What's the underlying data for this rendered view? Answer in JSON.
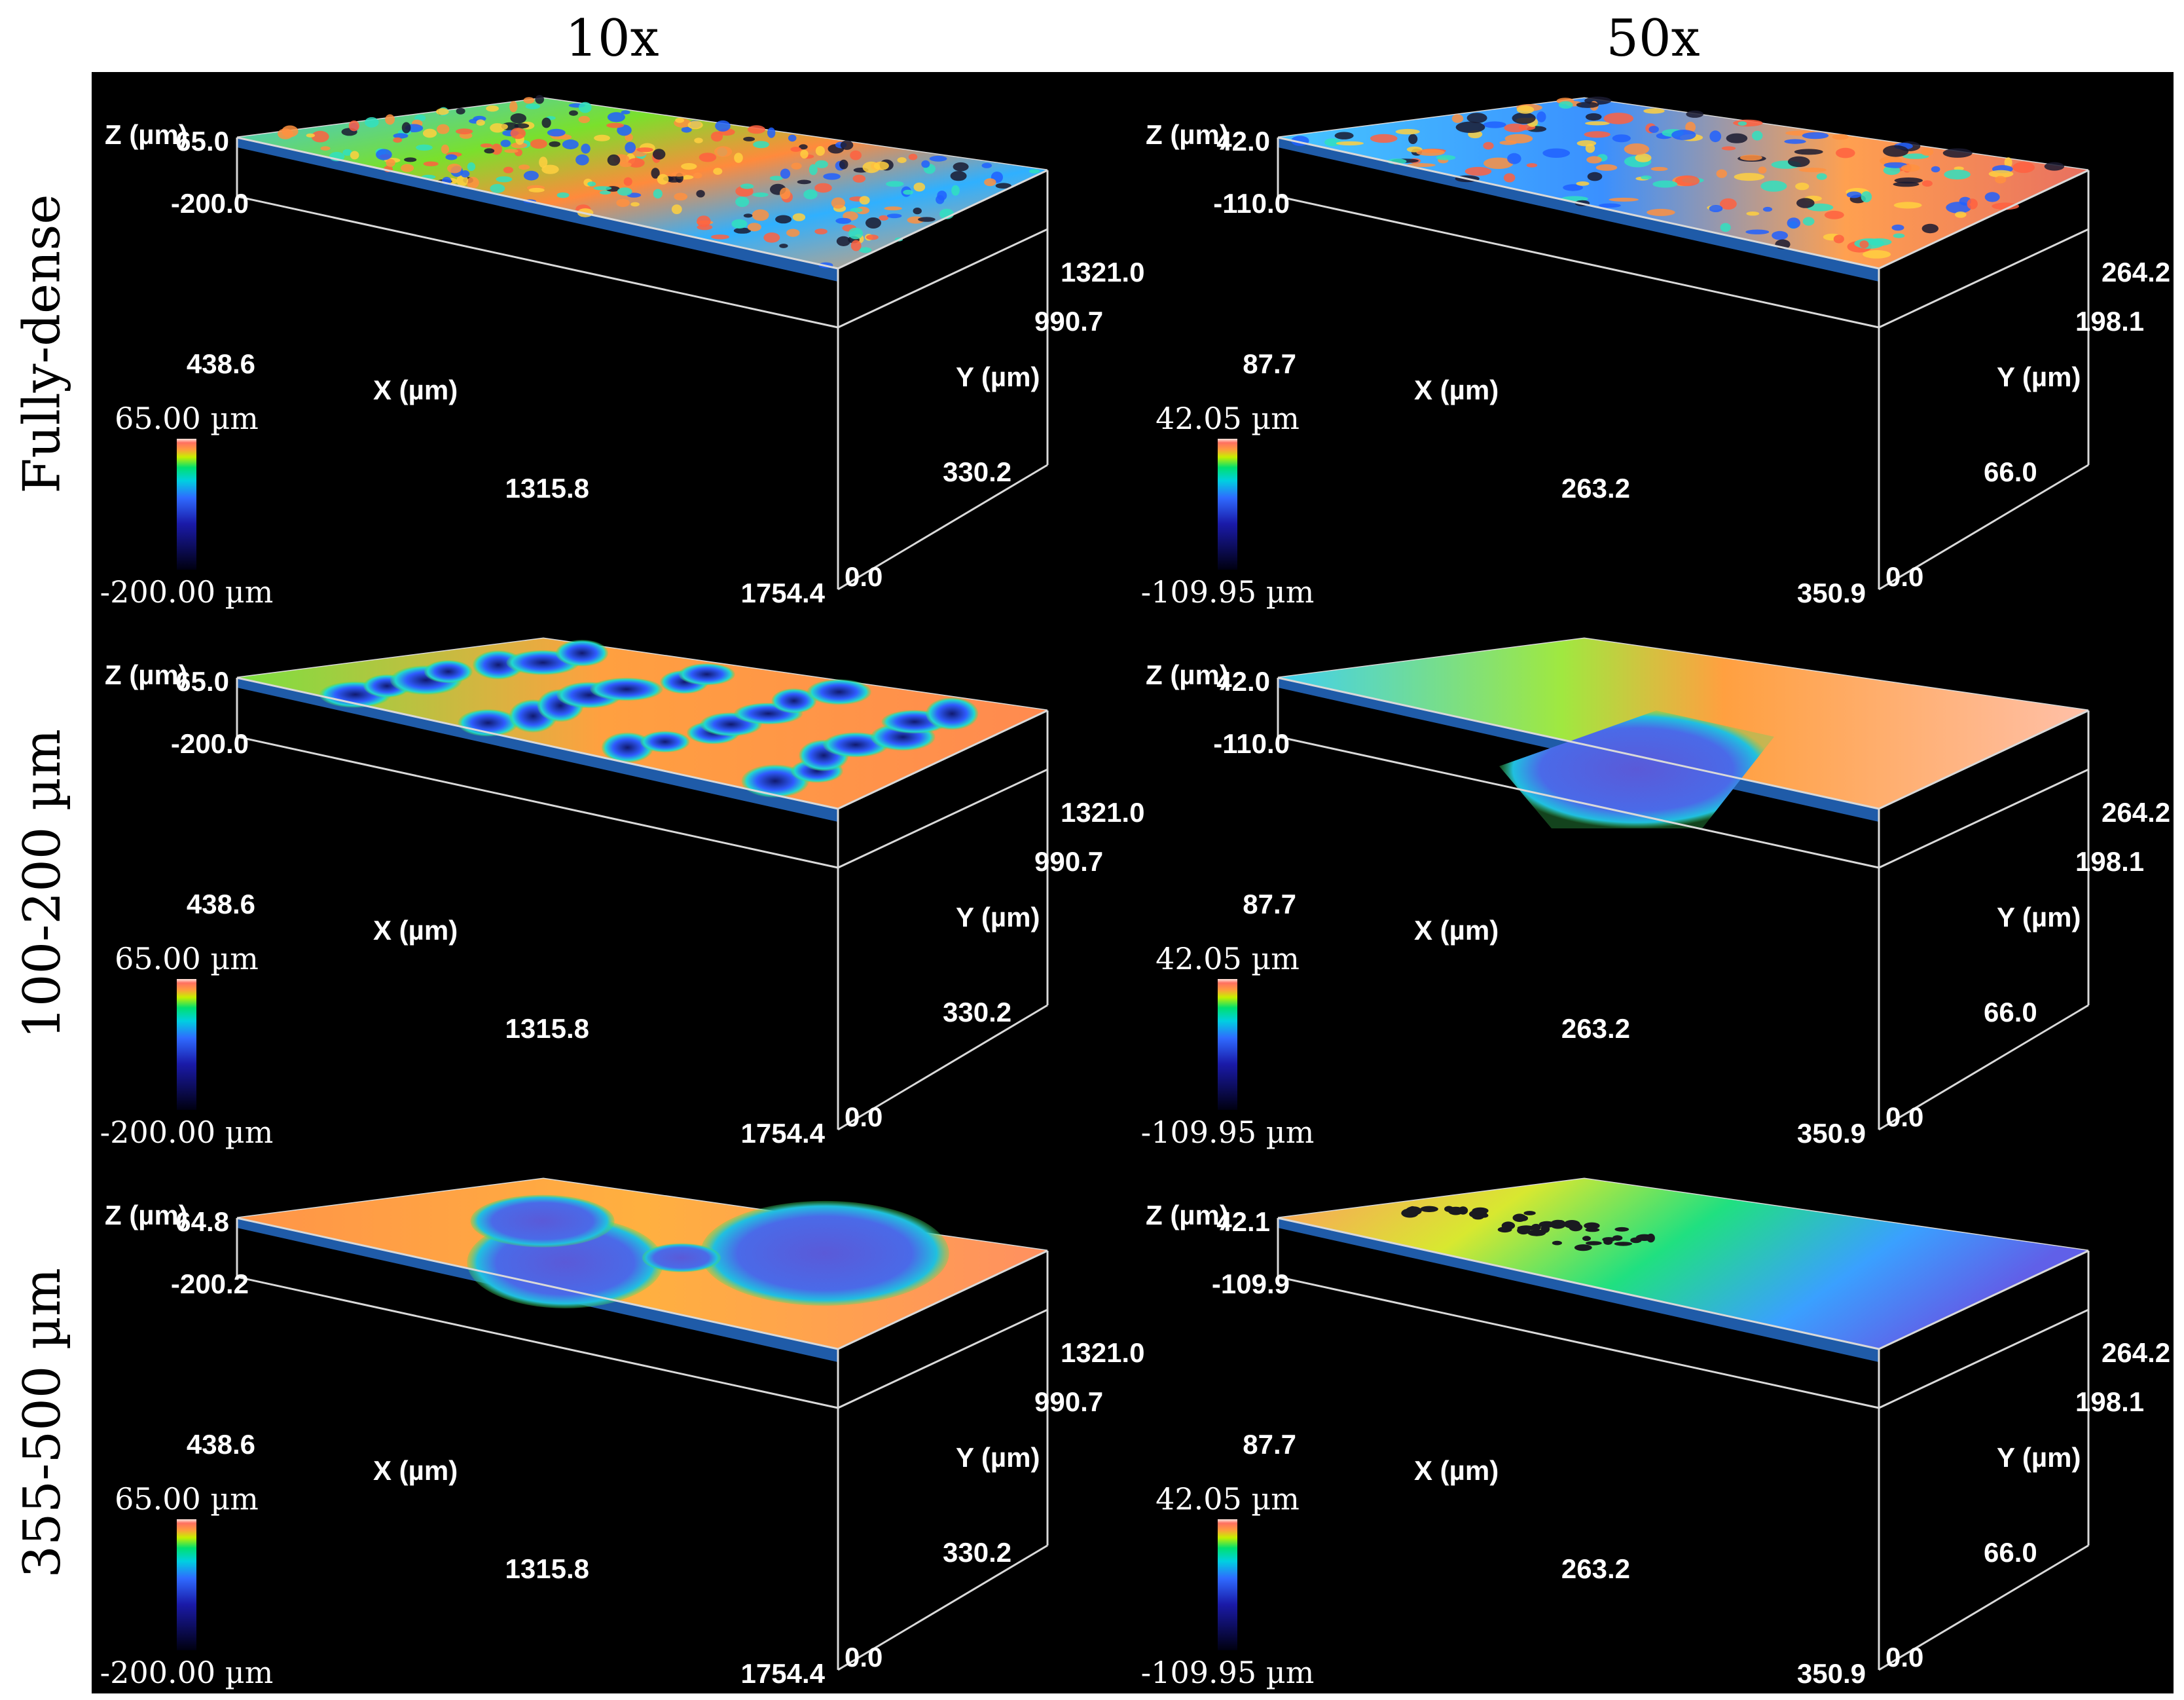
{
  "columns": [
    "10x",
    "50x"
  ],
  "rows": [
    "Fully-dense",
    "100-200 µm",
    "355-500 µm"
  ],
  "axis_labels": {
    "z": "Z (µm)",
    "x": "X (µm)",
    "y": "Y (µm)"
  },
  "panels": [
    {
      "z_top": "65.0",
      "z_bottom": "-200.0",
      "x_ticks": [
        "438.6",
        "1315.8",
        "1754.4"
      ],
      "y_ticks": [
        "1321.0",
        "990.7",
        "330.2",
        "0.0"
      ],
      "cb_max": "65.00 µm",
      "cb_min": "-200.00 µm",
      "surface": "noise"
    },
    {
      "z_top": "42.0",
      "z_bottom": "-110.0",
      "x_ticks": [
        "87.7",
        "263.2",
        "350.9"
      ],
      "y_ticks": [
        "264.2",
        "198.1",
        "66.0",
        "0.0"
      ],
      "cb_max": "42.05 µm",
      "cb_min": "-109.95 µm",
      "surface": "noise-coarse"
    },
    {
      "z_top": "65.0",
      "z_bottom": "-200.0",
      "x_ticks": [
        "438.6",
        "1315.8",
        "1754.4"
      ],
      "y_ticks": [
        "1321.0",
        "990.7",
        "330.2",
        "0.0"
      ],
      "cb_max": "65.00 µm",
      "cb_min": "-200.00 µm",
      "surface": "pores"
    },
    {
      "z_top": "42.0",
      "z_bottom": "-110.0",
      "x_ticks": [
        "87.7",
        "263.2",
        "350.9"
      ],
      "y_ticks": [
        "264.2",
        "198.1",
        "66.0",
        "0.0"
      ],
      "cb_max": "42.05 µm",
      "cb_min": "-109.95 µm",
      "surface": "single-pore"
    },
    {
      "z_top": "64.8",
      "z_bottom": "-200.2",
      "x_ticks": [
        "438.6",
        "1315.8",
        "1754.4"
      ],
      "y_ticks": [
        "1321.0",
        "990.7",
        "330.2",
        "0.0"
      ],
      "cb_max": "65.00 µm",
      "cb_min": "-200.00 µm",
      "surface": "large-pores"
    },
    {
      "z_top": "42.1",
      "z_bottom": "-109.9",
      "x_ticks": [
        "87.7",
        "263.2",
        "350.9"
      ],
      "y_ticks": [
        "264.2",
        "198.1",
        "66.0",
        "0.0"
      ],
      "cb_max": "42.05 µm",
      "cb_min": "-109.95 µm",
      "surface": "gradient"
    }
  ]
}
